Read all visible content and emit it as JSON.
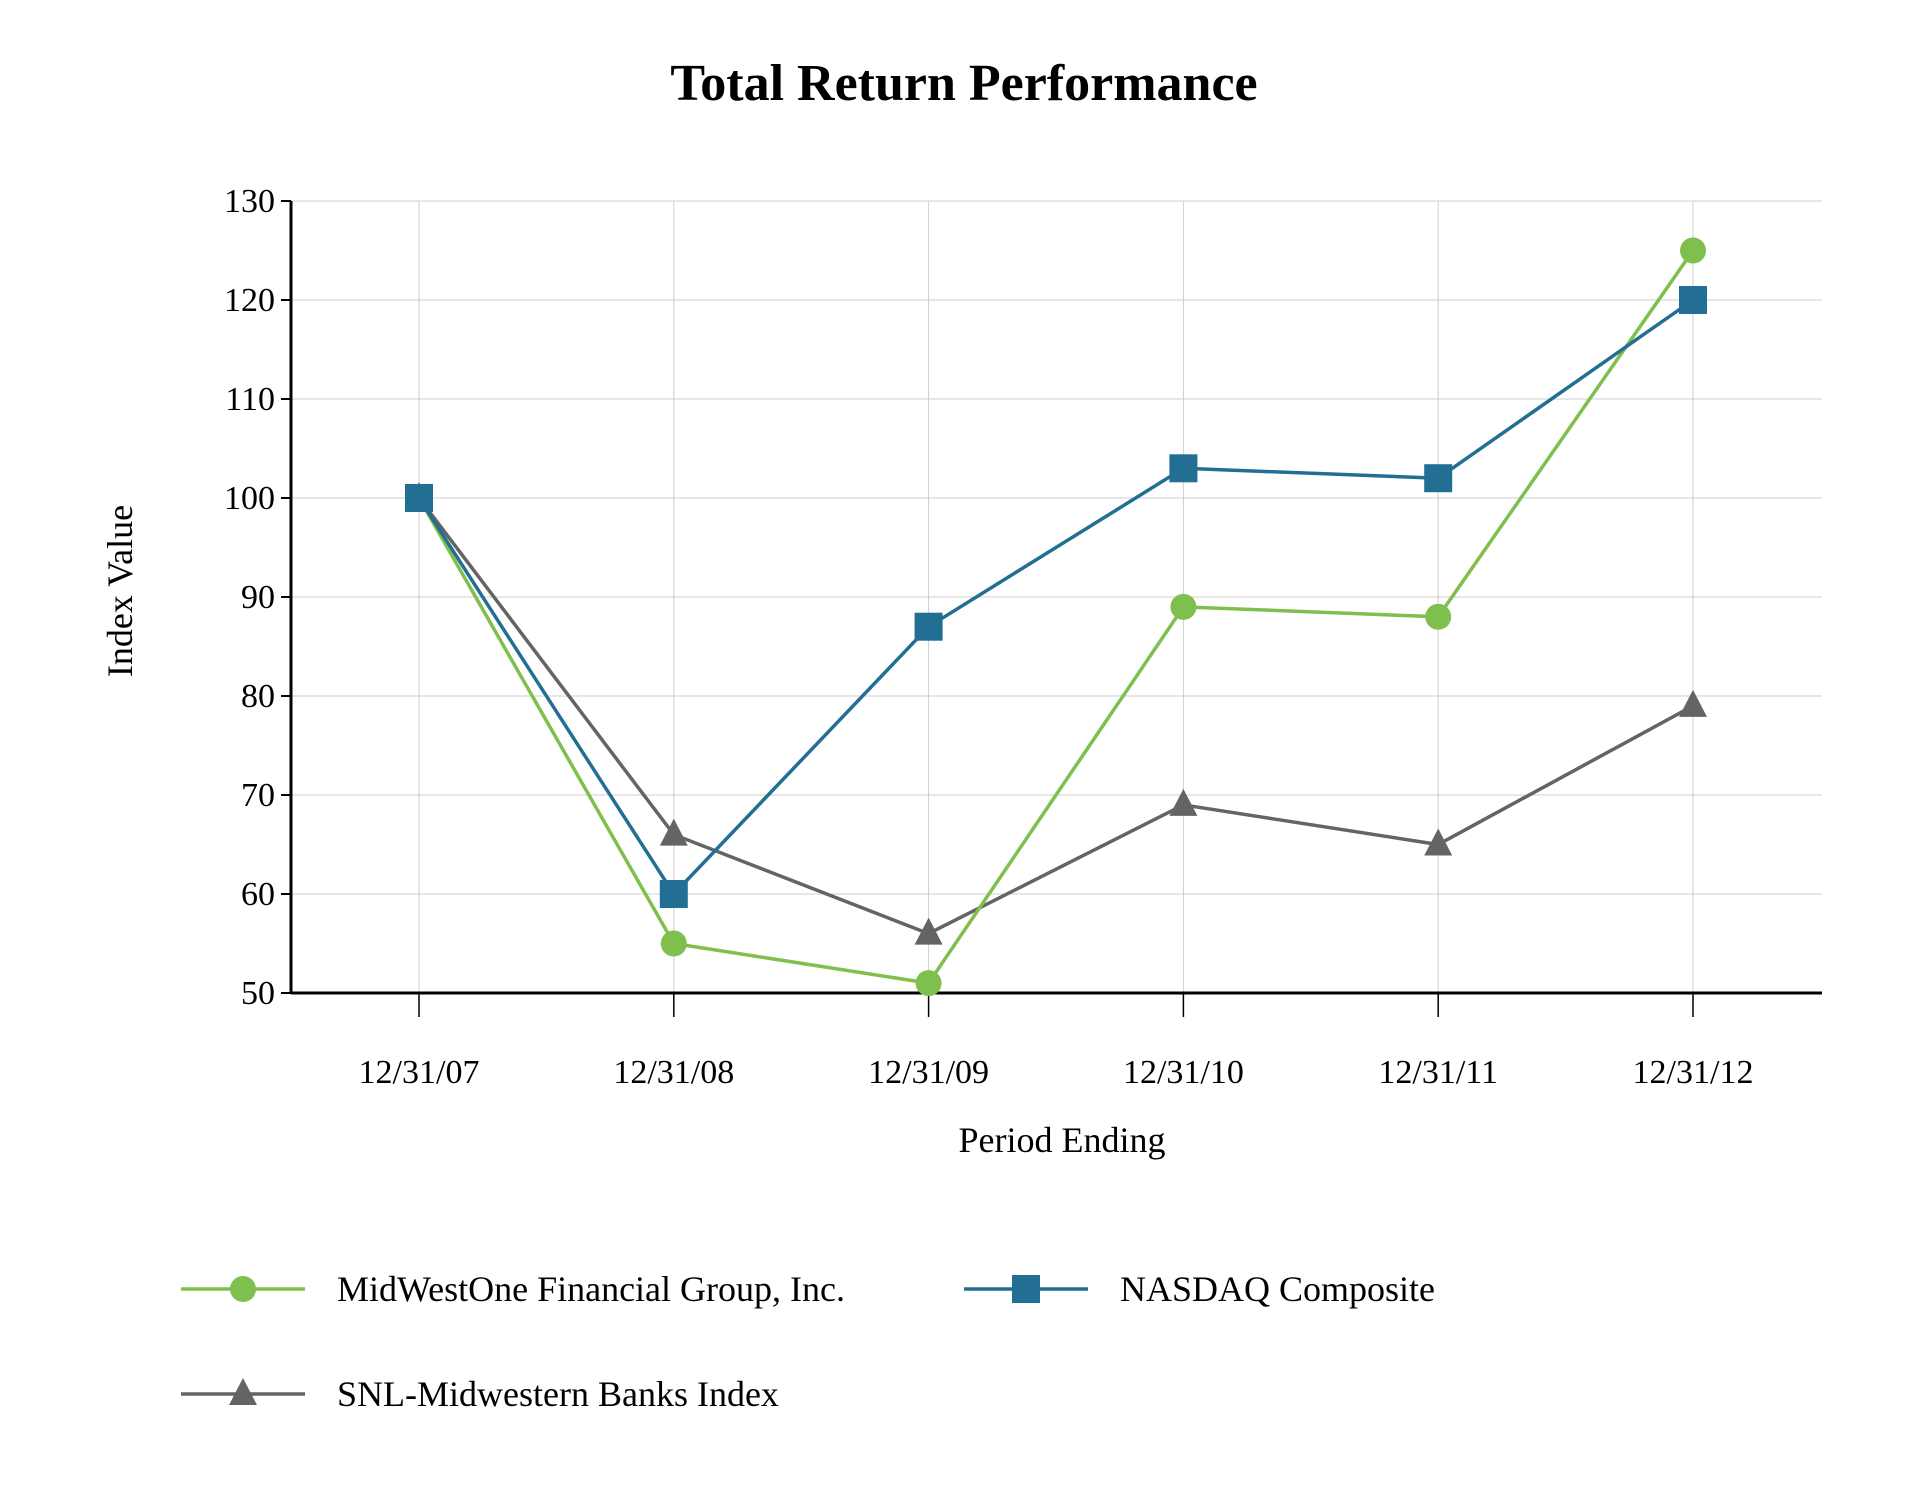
{
  "chart_data": {
    "type": "line",
    "title": "Total Return Performance",
    "xlabel": "Period Ending",
    "ylabel": "Index Value",
    "categories": [
      "12/31/07",
      "12/31/08",
      "12/31/09",
      "12/31/10",
      "12/31/11",
      "12/31/12"
    ],
    "ylim": [
      50,
      130
    ],
    "yticks": [
      50,
      60,
      70,
      80,
      90,
      100,
      110,
      120,
      130
    ],
    "grid": true,
    "legend_position": "bottom",
    "series": [
      {
        "name": "MidWestOne Financial Group, Inc.",
        "marker": "circle",
        "color": "#7fbf4d",
        "values": [
          100,
          55,
          51,
          89,
          88,
          125
        ]
      },
      {
        "name": "NASDAQ Composite",
        "marker": "square",
        "color": "#236f94",
        "values": [
          100,
          60,
          87,
          103,
          102,
          120
        ]
      },
      {
        "name": "SNL-Midwestern Banks Index",
        "marker": "triangle",
        "color": "#646464",
        "values": [
          100,
          66,
          56,
          69,
          65,
          79
        ]
      }
    ]
  }
}
